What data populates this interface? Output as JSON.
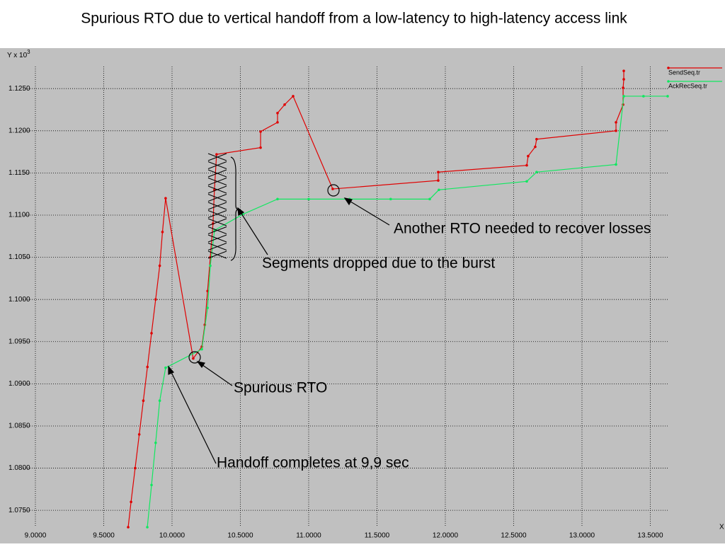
{
  "chart_data": {
    "type": "line",
    "title": "Spurious RTO due to vertical handoff from a low-latency to high-latency access link",
    "y_label": "Y x 10",
    "y_label_exp": "3",
    "x_label": "X",
    "xlim": [
      8.912,
      13.627
    ],
    "ylim": [
      1.073,
      1.1298
    ],
    "grid": true,
    "legend": "top-right",
    "xticks": [
      {
        "value": 9.0,
        "label": "9.0000"
      },
      {
        "value": 9.5,
        "label": "9.5000"
      },
      {
        "value": 10.0,
        "label": "10.0000"
      },
      {
        "value": 10.5,
        "label": "10.5000"
      },
      {
        "value": 11.0,
        "label": "11.0000"
      },
      {
        "value": 11.5,
        "label": "11.5000"
      },
      {
        "value": 12.0,
        "label": "12.0000"
      },
      {
        "value": 12.5,
        "label": "12.5000"
      },
      {
        "value": 13.0,
        "label": "13.0000"
      },
      {
        "value": 13.5,
        "label": "13.5000"
      }
    ],
    "yticks": [
      {
        "value": 1.075,
        "label": "1.0750"
      },
      {
        "value": 1.08,
        "label": "1.0800"
      },
      {
        "value": 1.085,
        "label": "1.0850"
      },
      {
        "value": 1.09,
        "label": "1.0900"
      },
      {
        "value": 1.095,
        "label": "1.0950"
      },
      {
        "value": 1.1,
        "label": "1.1000"
      },
      {
        "value": 1.105,
        "label": "1.1050"
      },
      {
        "value": 1.11,
        "label": "1.1100"
      },
      {
        "value": 1.115,
        "label": "1.1150"
      },
      {
        "value": 1.12,
        "label": "1.1200"
      },
      {
        "value": 1.125,
        "label": "1.1250"
      }
    ],
    "series": [
      {
        "name": "SendSeq.tr",
        "color": "#e00000",
        "x": [
          9.679,
          9.7,
          9.73,
          9.76,
          9.79,
          9.82,
          9.85,
          9.88,
          9.91,
          9.93,
          9.953,
          10.155,
          10.218,
          10.24,
          10.26,
          10.28,
          10.3,
          10.31,
          10.326,
          10.648,
          10.648,
          10.772,
          10.772,
          10.824,
          10.886,
          11.176,
          11.948,
          11.948,
          12.596,
          12.606,
          12.658,
          12.668,
          13.249,
          13.249,
          13.301,
          13.301,
          13.306,
          13.306
        ],
        "values": [
          1.073,
          1.076,
          1.08,
          1.084,
          1.088,
          1.092,
          1.096,
          1.1,
          1.104,
          1.108,
          1.112,
          1.093,
          1.0944,
          1.097,
          1.101,
          1.105,
          1.109,
          1.113,
          1.1172,
          1.118,
          1.1199,
          1.121,
          1.1221,
          1.1231,
          1.1241,
          1.1131,
          1.1141,
          1.1151,
          1.1159,
          1.117,
          1.1181,
          1.119,
          1.12,
          1.121,
          1.1231,
          1.1251,
          1.1261,
          1.1271
        ]
      },
      {
        "name": "AckRecSeq.tr",
        "color": "#10e860",
        "x": [
          9.819,
          9.85,
          9.88,
          9.91,
          9.953,
          10.218,
          10.26,
          10.28,
          10.311,
          10.518,
          10.772,
          11.0,
          11.3,
          11.6,
          11.886,
          11.953,
          12.596,
          12.668,
          13.249,
          13.306,
          13.45,
          13.627
        ],
        "values": [
          1.073,
          1.078,
          1.083,
          1.088,
          1.0919,
          1.0941,
          1.099,
          1.104,
          1.1082,
          1.1101,
          1.1119,
          1.1119,
          1.1119,
          1.1119,
          1.1119,
          1.113,
          1.114,
          1.1151,
          1.116,
          1.1241,
          1.1241,
          1.1241
        ]
      }
    ],
    "annotations": [
      "Another RTO needed to recover losses",
      "Segments dropped due to the burst",
      "Spurious RTO",
      "Handoff completes at 9,9 sec"
    ]
  }
}
